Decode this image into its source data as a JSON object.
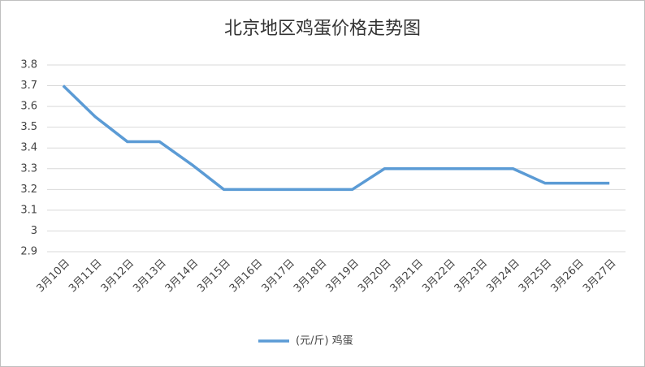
{
  "chart_data": {
    "type": "line",
    "title": "北京地区鸡蛋价格走势图",
    "categories": [
      "3月10日",
      "3月11日",
      "3月12日",
      "3月13日",
      "3月14日",
      "3月15日",
      "3月16日",
      "3月17日",
      "3月18日",
      "3月19日",
      "3月20日",
      "3月21日",
      "3月22日",
      "3月23日",
      "3月24日",
      "3月25日",
      "3月26日",
      "3月27日"
    ],
    "series": [
      {
        "name": "(元/斤) 鸡蛋",
        "color": "#5b9bd5",
        "values": [
          3.7,
          3.55,
          3.43,
          3.43,
          3.32,
          3.2,
          3.2,
          3.2,
          3.2,
          3.2,
          3.3,
          3.3,
          3.3,
          3.3,
          3.3,
          3.23,
          3.23,
          3.23
        ]
      }
    ],
    "ylim": [
      2.9,
      3.8
    ],
    "yticks": [
      2.9,
      3,
      3.1,
      3.2,
      3.3,
      3.4,
      3.5,
      3.6,
      3.7,
      3.8
    ],
    "grid": true,
    "legend": "bottom"
  }
}
